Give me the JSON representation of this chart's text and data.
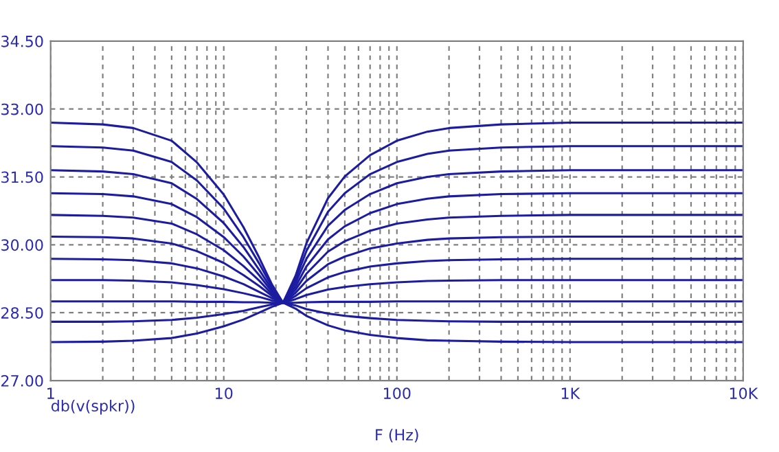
{
  "chart_data": {
    "type": "line",
    "xlabel": "F (Hz)",
    "annotations": [
      "db(v(spkr))"
    ],
    "log": "x",
    "grid": true,
    "marker": "none",
    "line_style": "solid",
    "xlim": [
      1,
      10000
    ],
    "ylim": [
      27.0,
      34.5
    ],
    "xticks": [
      {
        "value": 1,
        "label": "1"
      },
      {
        "value": 2,
        "label": null
      },
      {
        "value": 3,
        "label": null
      },
      {
        "value": 4,
        "label": null
      },
      {
        "value": 5,
        "label": null
      },
      {
        "value": 6,
        "label": null
      },
      {
        "value": 7,
        "label": null
      },
      {
        "value": 8,
        "label": null
      },
      {
        "value": 9,
        "label": null
      },
      {
        "value": 10,
        "label": "10"
      },
      {
        "value": 20,
        "label": null
      },
      {
        "value": 30,
        "label": null
      },
      {
        "value": 40,
        "label": null
      },
      {
        "value": 50,
        "label": null
      },
      {
        "value": 60,
        "label": null
      },
      {
        "value": 70,
        "label": null
      },
      {
        "value": 80,
        "label": null
      },
      {
        "value": 90,
        "label": null
      },
      {
        "value": 100,
        "label": "100"
      },
      {
        "value": 200,
        "label": null
      },
      {
        "value": 300,
        "label": null
      },
      {
        "value": 400,
        "label": null
      },
      {
        "value": 500,
        "label": null
      },
      {
        "value": 600,
        "label": null
      },
      {
        "value": 700,
        "label": null
      },
      {
        "value": 800,
        "label": null
      },
      {
        "value": 900,
        "label": null
      },
      {
        "value": 1000,
        "label": "1K"
      },
      {
        "value": 2000,
        "label": null
      },
      {
        "value": 3000,
        "label": null
      },
      {
        "value": 4000,
        "label": null
      },
      {
        "value": 5000,
        "label": null
      },
      {
        "value": 6000,
        "label": null
      },
      {
        "value": 7000,
        "label": null
      },
      {
        "value": 8000,
        "label": null
      },
      {
        "value": 9000,
        "label": null
      },
      {
        "value": 10000,
        "label": "10K"
      }
    ],
    "yticks": [
      {
        "value": 27.0,
        "label": "27.00"
      },
      {
        "value": 28.5,
        "label": "28.50"
      },
      {
        "value": 30.0,
        "label": "30.00"
      },
      {
        "value": 31.5,
        "label": "31.50"
      },
      {
        "value": 33.0,
        "label": "33.00"
      },
      {
        "value": 34.5,
        "label": "34.50"
      }
    ],
    "x": [
      1,
      2,
      3,
      5,
      7,
      10,
      13,
      16,
      19,
      22,
      26,
      30,
      40,
      50,
      70,
      100,
      150,
      200,
      400,
      1000,
      10000
    ],
    "series": [
      {
        "color": "#1c1ca0",
        "values": [
          32.7,
          32.66,
          32.58,
          32.3,
          31.82,
          31.11,
          30.39,
          29.72,
          29.12,
          28.72,
          29.32,
          30.03,
          31.03,
          31.51,
          31.98,
          32.3,
          32.5,
          32.58,
          32.66,
          32.7,
          32.7
        ]
      },
      {
        "color": "#1c1ca0",
        "values": [
          32.18,
          32.15,
          32.08,
          31.83,
          31.42,
          30.8,
          30.17,
          29.59,
          29.07,
          28.72,
          29.24,
          29.86,
          30.73,
          31.14,
          31.56,
          31.83,
          32.01,
          32.08,
          32.15,
          32.18,
          32.18
        ]
      },
      {
        "color": "#1c1ca0",
        "values": [
          31.65,
          31.62,
          31.56,
          31.36,
          31.01,
          30.48,
          29.95,
          29.45,
          29.01,
          28.72,
          29.16,
          29.69,
          30.42,
          30.77,
          31.12,
          31.36,
          31.5,
          31.56,
          31.62,
          31.65,
          31.65
        ]
      },
      {
        "color": "#1c1ca0",
        "values": [
          31.14,
          31.12,
          31.07,
          30.9,
          30.61,
          30.17,
          29.74,
          29.33,
          28.96,
          28.72,
          29.08,
          29.52,
          30.12,
          30.41,
          30.7,
          30.9,
          31.02,
          31.07,
          31.12,
          31.14,
          31.14
        ]
      },
      {
        "color": "#1c1ca0",
        "values": [
          30.66,
          30.64,
          30.6,
          30.47,
          30.23,
          29.88,
          29.53,
          29.21,
          28.91,
          28.72,
          29.01,
          29.36,
          29.85,
          30.08,
          30.31,
          30.47,
          30.56,
          30.6,
          30.64,
          30.66,
          30.66
        ]
      },
      {
        "color": "#1c1ca0",
        "values": [
          30.18,
          30.17,
          30.14,
          30.03,
          29.86,
          29.6,
          29.33,
          29.09,
          28.87,
          28.72,
          28.94,
          29.2,
          29.57,
          29.74,
          29.92,
          30.03,
          30.11,
          30.14,
          30.17,
          30.18,
          30.18
        ]
      },
      {
        "color": "#1c1ca0",
        "values": [
          29.69,
          29.68,
          29.66,
          29.59,
          29.48,
          29.3,
          29.13,
          28.96,
          28.82,
          28.72,
          28.87,
          29.04,
          29.28,
          29.4,
          29.52,
          29.59,
          29.64,
          29.66,
          29.68,
          29.69,
          29.69
        ]
      },
      {
        "color": "#1c1ca0",
        "values": [
          29.22,
          29.22,
          29.21,
          29.17,
          29.11,
          29.02,
          28.93,
          28.85,
          28.77,
          28.72,
          28.8,
          28.89,
          29.01,
          29.07,
          29.13,
          29.17,
          29.2,
          29.21,
          29.22,
          29.22,
          29.22
        ]
      },
      {
        "color": "#1c1ca0",
        "values": [
          28.75,
          28.75,
          28.75,
          28.75,
          28.74,
          28.74,
          28.73,
          28.73,
          28.72,
          28.72,
          28.72,
          28.73,
          28.74,
          28.74,
          28.74,
          28.75,
          28.75,
          28.75,
          28.75,
          28.75,
          28.75
        ]
      },
      {
        "color": "#1c1ca0",
        "values": [
          28.3,
          28.3,
          28.31,
          28.34,
          28.39,
          28.47,
          28.54,
          28.62,
          28.68,
          28.72,
          28.66,
          28.58,
          28.48,
          28.43,
          28.38,
          28.34,
          28.32,
          28.31,
          28.3,
          28.3,
          28.3
        ]
      },
      {
        "color": "#1c1ca0",
        "values": [
          27.85,
          27.86,
          27.88,
          27.94,
          28.04,
          28.2,
          28.35,
          28.5,
          28.63,
          28.72,
          28.59,
          28.43,
          28.22,
          28.11,
          28.01,
          27.94,
          27.89,
          27.88,
          27.86,
          27.85,
          27.85
        ]
      }
    ]
  }
}
